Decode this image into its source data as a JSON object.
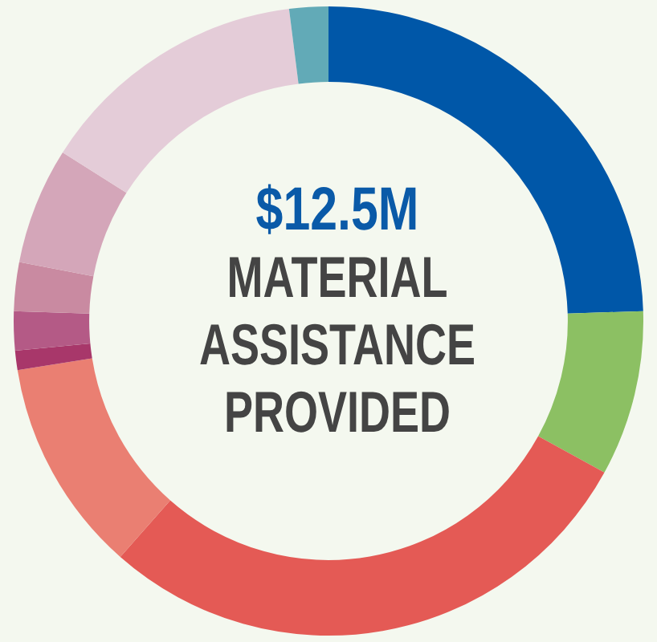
{
  "chart_data": {
    "type": "donut",
    "title": "$12.5M",
    "subtitle": "MATERIAL\nASSISTANCE\nPROVIDED",
    "categories": [
      null,
      null,
      null,
      null,
      null,
      null,
      null,
      null,
      null,
      null
    ],
    "values": [
      24.5,
      8.5,
      28.5,
      11,
      1,
      2,
      2.5,
      6,
      14,
      2
    ],
    "colors": [
      "#0057a8",
      "#8cc063",
      "#e45a55",
      "#ea7f72",
      "#a8376a",
      "#b45a86",
      "#c98aa1",
      "#d4a6b9",
      "#e4ccd8",
      "#62aab7"
    ],
    "legend": false
  }
}
